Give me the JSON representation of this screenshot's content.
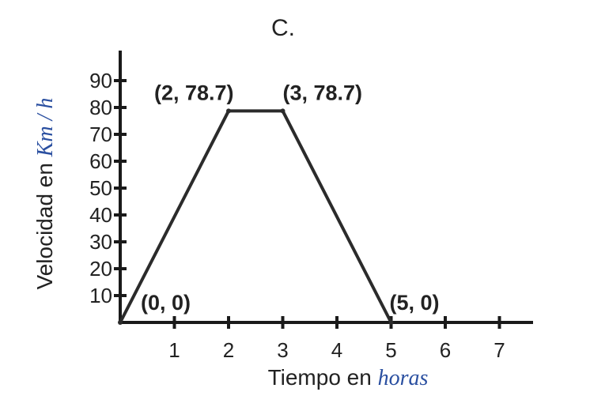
{
  "chart_data": {
    "type": "line",
    "title": "C.",
    "xlabel": {
      "prefix": "Tiempo en ",
      "unit": "horas"
    },
    "ylabel": {
      "prefix": "Velocidad en ",
      "unit": "Km / h"
    },
    "x_ticks": [
      1,
      2,
      3,
      4,
      5,
      6,
      7
    ],
    "y_ticks": [
      10,
      20,
      30,
      40,
      50,
      60,
      70,
      80,
      90
    ],
    "xlim": [
      0,
      7
    ],
    "ylim": [
      0,
      90
    ],
    "grid": false,
    "series": [
      {
        "points": [
          {
            "x": 0,
            "y": 0
          },
          {
            "x": 2,
            "y": 78.7
          },
          {
            "x": 3,
            "y": 78.7
          },
          {
            "x": 5,
            "y": 0
          }
        ]
      }
    ],
    "annotations": [
      "(0, 0)",
      "(2, 78.7)",
      "(3, 78.7)",
      "(5, 0)"
    ],
    "colors": {
      "line": "#2b2b2b",
      "axis": "#1a1a1a",
      "unit_text": "#2a4fa0",
      "text": "#222222"
    }
  }
}
